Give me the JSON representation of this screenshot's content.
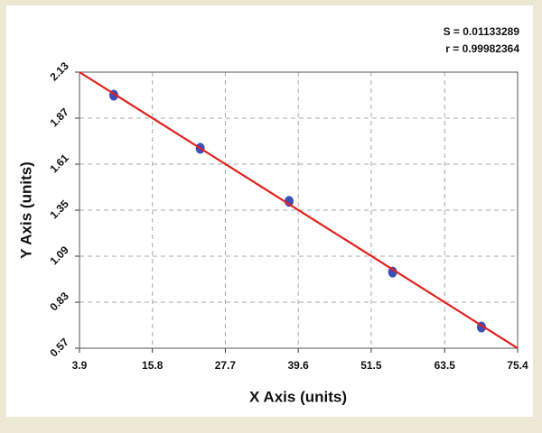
{
  "chart_data": {
    "type": "scatter",
    "xlabel": "X Axis (units)",
    "ylabel": "Y Axis (units)",
    "annotations": [
      "S = 0.01133289",
      "r = 0.99982364"
    ],
    "xlim": [
      3.9,
      75.4
    ],
    "xticks": [
      3.9,
      15.8,
      27.7,
      39.6,
      51.5,
      63.5,
      75.4
    ],
    "ylim": [
      0.57,
      2.13
    ],
    "yticks": [
      0.57,
      0.83,
      1.09,
      1.35,
      1.61,
      1.87,
      2.13
    ],
    "grid": true,
    "series": [
      {
        "mode": "markers",
        "color": "#3a4fb8",
        "x": [
          9.5,
          23.6,
          38.1,
          55.0,
          69.5
        ],
        "values": [
          2.0,
          1.7,
          1.4,
          1.0,
          0.69
        ]
      },
      {
        "mode": "line",
        "color": "#e3201b",
        "x": [
          3.9,
          75.4
        ],
        "values": [
          2.13,
          0.57
        ]
      }
    ]
  }
}
